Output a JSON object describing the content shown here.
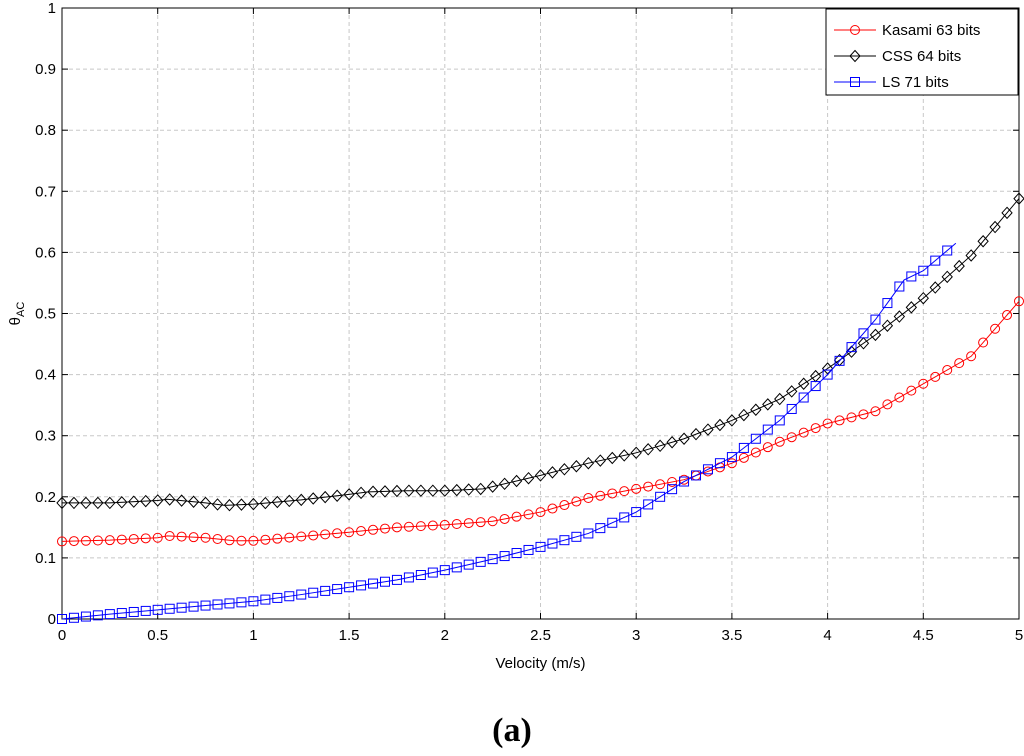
{
  "caption": "(a)",
  "chart_data": {
    "type": "line",
    "title": "",
    "xlabel": "Velocity (m/s)",
    "ylabel": "θ",
    "ylabel_sub": "AC",
    "xlim": [
      0,
      5
    ],
    "ylim": [
      0,
      1
    ],
    "x_ticks": [
      0,
      0.5,
      1,
      1.5,
      2,
      2.5,
      3,
      3.5,
      4,
      4.5,
      5
    ],
    "x_tick_labels": [
      "0",
      "0.5",
      "1",
      "1.5",
      "2",
      "2.5",
      "3",
      "3.5",
      "4",
      "4.5",
      "5"
    ],
    "y_ticks": [
      0,
      0.1,
      0.2,
      0.3,
      0.4,
      0.5,
      0.6,
      0.7,
      0.8,
      0.9,
      1
    ],
    "y_tick_labels": [
      "0",
      "0.1",
      "0.2",
      "0.3",
      "0.4",
      "0.5",
      "0.6",
      "0.7",
      "0.8",
      "0.9",
      "1"
    ],
    "grid": true,
    "legend_position": "top-right",
    "series": [
      {
        "name": "Kasami 63 bits",
        "color": "#ff0000",
        "marker": "circle",
        "x": [
          0,
          0.25,
          0.5,
          0.55,
          0.75,
          0.9,
          1.0,
          1.25,
          1.5,
          1.75,
          2.0,
          2.25,
          2.5,
          2.75,
          3.0,
          3.25,
          3.5,
          3.75,
          4.0,
          4.25,
          4.5,
          4.75,
          5.0
        ],
        "values": [
          0.127,
          0.129,
          0.133,
          0.136,
          0.133,
          0.128,
          0.128,
          0.135,
          0.142,
          0.15,
          0.154,
          0.16,
          0.175,
          0.198,
          0.213,
          0.228,
          0.255,
          0.29,
          0.32,
          0.34,
          0.385,
          0.43,
          0.52
        ]
      },
      {
        "name": "CSS 64 bits",
        "color": "#000000",
        "marker": "diamond",
        "x": [
          0,
          0.25,
          0.5,
          0.55,
          0.75,
          0.85,
          1.0,
          1.25,
          1.5,
          1.6,
          1.8,
          2.0,
          2.2,
          2.5,
          2.75,
          3.0,
          3.25,
          3.5,
          3.75,
          4.0,
          4.25,
          4.5,
          4.75,
          5.0
        ],
        "values": [
          0.19,
          0.19,
          0.194,
          0.196,
          0.19,
          0.186,
          0.188,
          0.195,
          0.204,
          0.208,
          0.21,
          0.21,
          0.213,
          0.235,
          0.255,
          0.272,
          0.295,
          0.325,
          0.36,
          0.41,
          0.465,
          0.525,
          0.595,
          0.688
        ]
      },
      {
        "name": "LS 71 bits",
        "color": "#0000ff",
        "marker": "square",
        "x": [
          0,
          0.25,
          0.5,
          0.75,
          1.0,
          1.25,
          1.5,
          1.75,
          2.0,
          2.25,
          2.5,
          2.75,
          3.0,
          3.25,
          3.5,
          3.75,
          4.0,
          4.25,
          4.4,
          4.5,
          4.67
        ],
        "values": [
          0.0,
          0.008,
          0.015,
          0.022,
          0.029,
          0.04,
          0.052,
          0.064,
          0.08,
          0.098,
          0.118,
          0.14,
          0.175,
          0.225,
          0.265,
          0.325,
          0.4,
          0.49,
          0.555,
          0.57,
          0.615
        ]
      }
    ]
  }
}
